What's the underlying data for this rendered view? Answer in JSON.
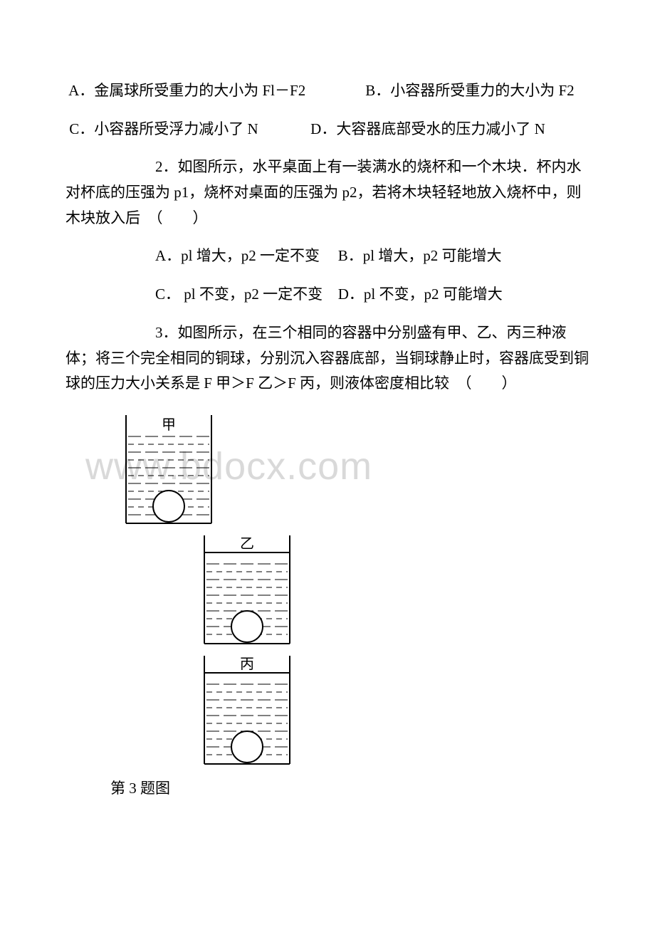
{
  "watermark": "www.bdocx.com",
  "q1": {
    "optA": "A．金属球所受重力的大小为 Fl－F2",
    "optB": "B．小容器所受重力的大小为 F2",
    "optC": "C．小容器所受浮力减小了 N",
    "optD": "D．大容器底部受水的压力减小了 N"
  },
  "q2": {
    "stem": "2．如图所示，水平桌面上有一装满水的烧杯和一个木块．杯内水对杯底的压强为 p1，烧杯对桌面的压强为 p2，若将木块轻轻地放入烧杯中，则木块放入后　（　　）",
    "optA": "A．pl 增大，p2 一定不变",
    "optB": "B．pl 增大，p2 可能增大",
    "optC": "C． pl 不变，p2 一定不变",
    "optD": "D．pl 不变，p2 可能增大"
  },
  "q3": {
    "stem": "3．如图所示，在三个相同的容器中分别盛有甲、乙、丙三种液体；将三个完全相同的铜球，分别沉入容器底部，当铜球静止时，容器底受到铜球的压力大小关系是 F 甲＞F 乙＞F 丙，则液体密度相比较　（　　）",
    "caption": "第 3 题图",
    "labels": {
      "jia": "甲",
      "yi": "乙",
      "bing": "丙"
    }
  },
  "fig_style": {
    "stroke": "#000000",
    "ball_fill": "#ffffff",
    "line_w": 2,
    "dash_w": 1,
    "container": {
      "w": 130,
      "h": 150
    },
    "ball_r": 22
  }
}
